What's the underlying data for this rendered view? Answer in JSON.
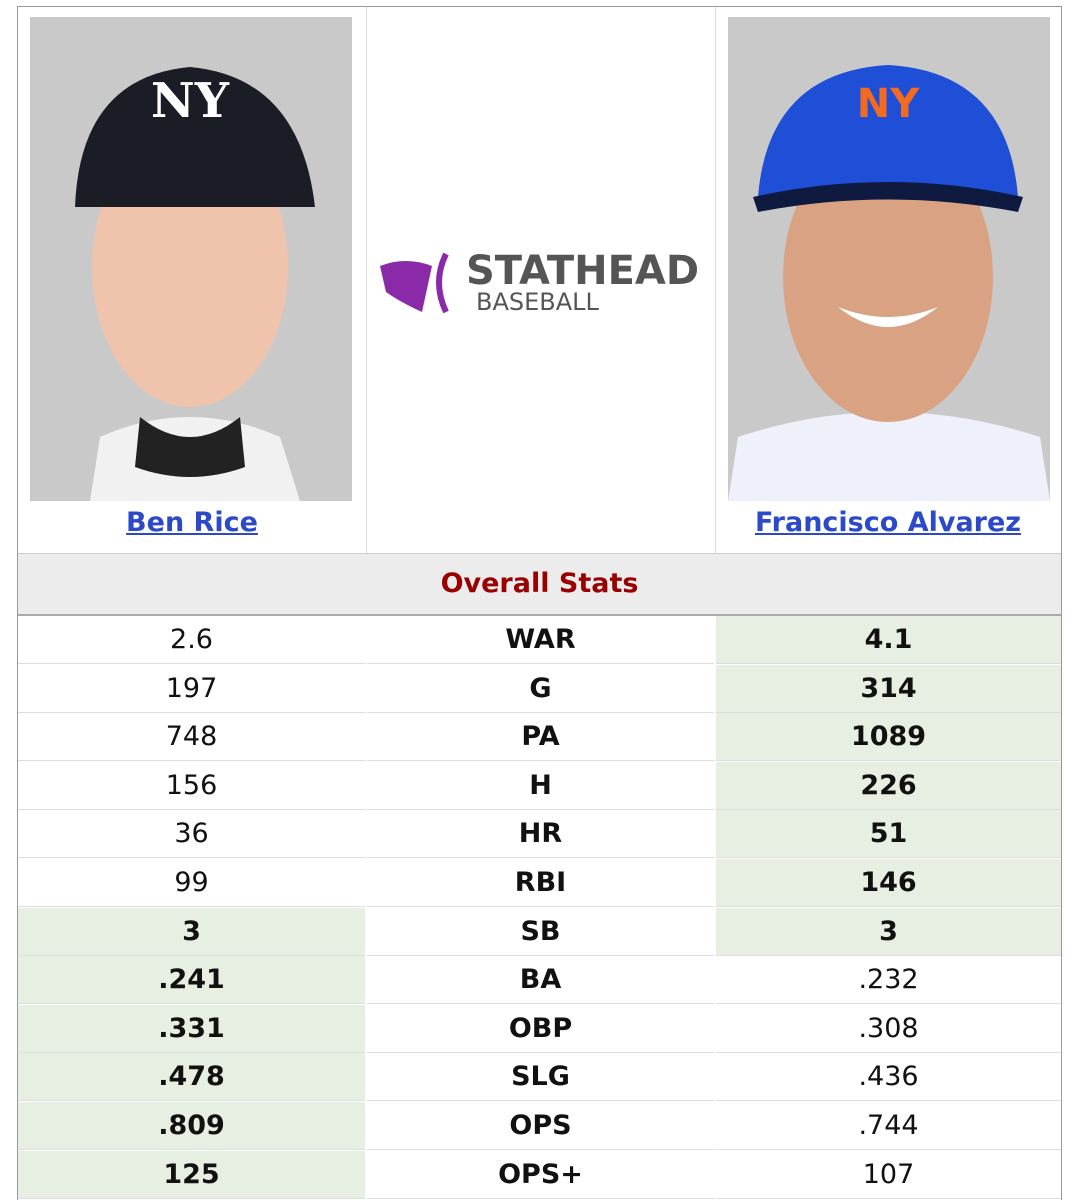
{
  "players": [
    {
      "name": "Ben Rice"
    },
    {
      "name": "Francisco Alvarez"
    }
  ],
  "logo": {
    "brand": "STATHEAD",
    "sub": "BASEBALL"
  },
  "section_title": "Overall Stats",
  "rows": [
    {
      "left": "2.6",
      "stat": "WAR",
      "right": "4.1",
      "leader": "right"
    },
    {
      "left": "197",
      "stat": "G",
      "right": "314",
      "leader": "right"
    },
    {
      "left": "748",
      "stat": "PA",
      "right": "1089",
      "leader": "right"
    },
    {
      "left": "156",
      "stat": "H",
      "right": "226",
      "leader": "right"
    },
    {
      "left": "36",
      "stat": "HR",
      "right": "51",
      "leader": "right"
    },
    {
      "left": "99",
      "stat": "RBI",
      "right": "146",
      "leader": "right"
    },
    {
      "left": "3",
      "stat": "SB",
      "right": "3",
      "leader": "both"
    },
    {
      "left": ".241",
      "stat": "BA",
      "right": ".232",
      "leader": "left"
    },
    {
      "left": ".331",
      "stat": "OBP",
      "right": ".308",
      "leader": "left"
    },
    {
      "left": ".478",
      "stat": "SLG",
      "right": ".436",
      "leader": "left"
    },
    {
      "left": ".809",
      "stat": "OPS",
      "right": ".744",
      "leader": "left"
    },
    {
      "left": "125",
      "stat": "OPS+",
      "right": "107",
      "leader": "left"
    }
  ]
}
